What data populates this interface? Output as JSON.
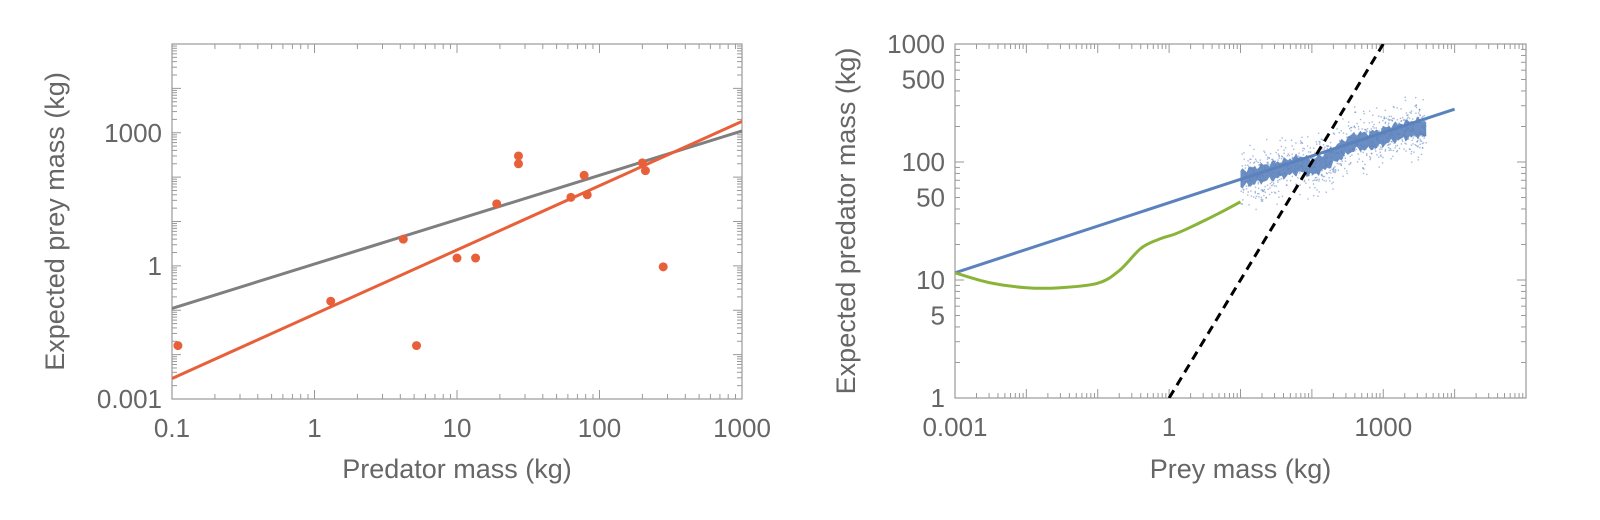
{
  "chart_data": [
    {
      "type": "scatter",
      "x_scale": "log",
      "y_scale": "log",
      "xlabel": "Predator mass (kg)",
      "ylabel": "Expected prey mass (kg)",
      "xlim": [
        0.1,
        1000
      ],
      "ylim": [
        0.001,
        100000
      ],
      "x_ticks": [
        {
          "value": 0.1,
          "label": "0.1"
        },
        {
          "value": 1,
          "label": "1"
        },
        {
          "value": 10,
          "label": "10"
        },
        {
          "value": 100,
          "label": "100"
        },
        {
          "value": 1000,
          "label": "1000"
        }
      ],
      "y_ticks": [
        {
          "value": 0.001,
          "label": "0.001"
        },
        {
          "value": 1,
          "label": "1"
        },
        {
          "value": 1000,
          "label": "1000"
        }
      ],
      "grid": false,
      "colors": {
        "points": "#e8603a",
        "fit_orange": "#e8603a",
        "fit_gray": "#7f7f7f",
        "frame": "#999999"
      },
      "points": [
        {
          "x": 0.11,
          "y": 0.016
        },
        {
          "x": 1.3,
          "y": 0.16
        },
        {
          "x": 4.2,
          "y": 4.0
        },
        {
          "x": 5.2,
          "y": 0.016
        },
        {
          "x": 10,
          "y": 1.5
        },
        {
          "x": 13.5,
          "y": 1.5
        },
        {
          "x": 19,
          "y": 25
        },
        {
          "x": 27,
          "y": 300
        },
        {
          "x": 27,
          "y": 200
        },
        {
          "x": 63,
          "y": 35
        },
        {
          "x": 78,
          "y": 110
        },
        {
          "x": 82,
          "y": 40
        },
        {
          "x": 200,
          "y": 210
        },
        {
          "x": 210,
          "y": 140
        },
        {
          "x": 280,
          "y": 0.95
        }
      ],
      "series": [
        {
          "type": "line",
          "color": "#7f7f7f",
          "x": [
            0.1,
            1000
          ],
          "y": [
            0.11,
            1100
          ]
        },
        {
          "type": "line",
          "color": "#e8603a",
          "x": [
            0.1,
            1000
          ],
          "y": [
            0.0029,
            1800
          ]
        }
      ]
    },
    {
      "type": "line",
      "x_scale": "log",
      "y_scale": "log",
      "xlabel": "Prey mass (kg)",
      "ylabel": "Expected predator mass (kg)",
      "xlim": [
        0.001,
        100000
      ],
      "ylim": [
        1,
        1000
      ],
      "x_ticks": [
        {
          "value": 0.001,
          "label": "0.001"
        },
        {
          "value": 1,
          "label": "1"
        },
        {
          "value": 1000,
          "label": "1000"
        }
      ],
      "y_ticks": [
        {
          "value": 1,
          "label": "1"
        },
        {
          "value": 5,
          "label": "5"
        },
        {
          "value": 10,
          "label": "10"
        },
        {
          "value": 50,
          "label": "50"
        },
        {
          "value": 100,
          "label": "100"
        },
        {
          "value": 500,
          "label": "500"
        },
        {
          "value": 1000,
          "label": "1000"
        }
      ],
      "grid": false,
      "colors": {
        "blue": "#5b82bd",
        "green": "#8ab33a",
        "dashed": "#000000",
        "cloud": "#5b82bd",
        "frame": "#999999"
      },
      "series": [
        {
          "type": "line",
          "color": "#5b82bd",
          "x": [
            0.001,
            10000
          ],
          "y": [
            11.5,
            280
          ]
        },
        {
          "type": "line",
          "color": "#8ab33a",
          "x": [
            0.001,
            0.003,
            0.01,
            0.03,
            0.1,
            0.2,
            0.4,
            0.7,
            1.2,
            2,
            3.5,
            6,
            10
          ],
          "y": [
            11.5,
            9.5,
            8.6,
            8.6,
            9.4,
            12,
            18.5,
            22,
            24.5,
            28,
            33,
            39,
            46
          ]
        },
        {
          "type": "dashed-line",
          "color": "#000000",
          "x": [
            1,
            1000
          ],
          "y": [
            1,
            1000
          ]
        }
      ],
      "point_cloud": {
        "color": "#5b82bd",
        "x_range": [
          10,
          4000
        ],
        "trend": [
          {
            "x": 10,
            "y": 72
          },
          {
            "x": 20,
            "y": 80
          },
          {
            "x": 40,
            "y": 88
          },
          {
            "x": 70,
            "y": 96
          },
          {
            "x": 100,
            "y": 90
          },
          {
            "x": 150,
            "y": 100
          },
          {
            "x": 250,
            "y": 125
          },
          {
            "x": 400,
            "y": 150
          },
          {
            "x": 600,
            "y": 150
          },
          {
            "x": 900,
            "y": 160
          },
          {
            "x": 1300,
            "y": 175
          },
          {
            "x": 2000,
            "y": 185
          },
          {
            "x": 3000,
            "y": 195
          },
          {
            "x": 4000,
            "y": 190
          }
        ]
      }
    }
  ]
}
